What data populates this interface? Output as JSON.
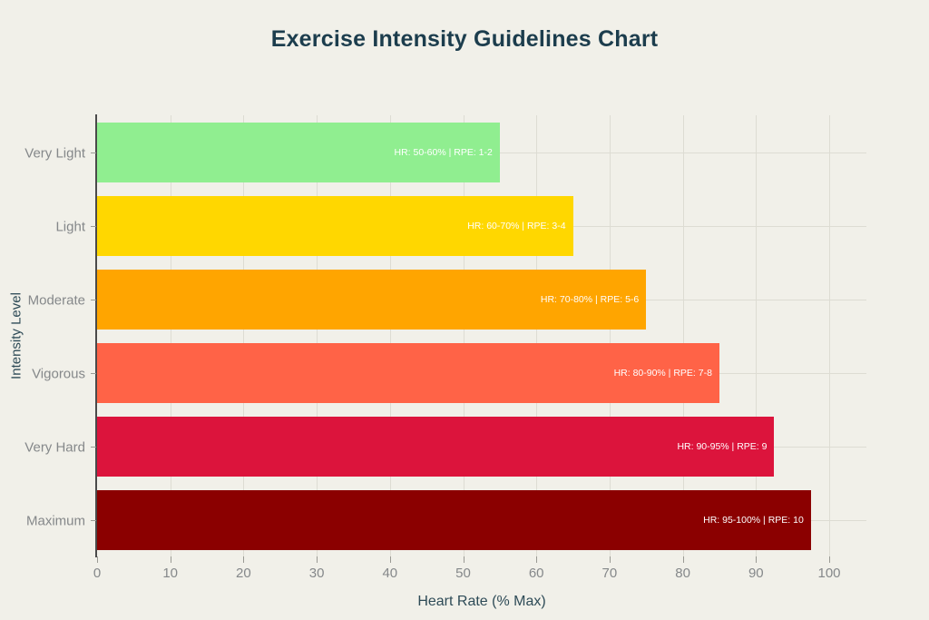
{
  "chart_data": {
    "type": "bar",
    "orientation": "horizontal",
    "title": "Exercise Intensity Guidelines Chart",
    "xlabel": "Heart Rate (% Max)",
    "ylabel": "Intensity Level",
    "categories": [
      "Very Light",
      "Light",
      "Moderate",
      "Vigorous",
      "Very Hard",
      "Maximum"
    ],
    "values": [
      55,
      65,
      75,
      85,
      92.5,
      97.5
    ],
    "bar_labels": [
      "HR: 50-60% | RPE: 1-2",
      "HR: 60-70% | RPE: 3-4",
      "HR: 70-80% | RPE: 5-6",
      "HR: 80-90% | RPE: 7-8",
      "HR: 90-95% | RPE: 9",
      "HR: 95-100% | RPE: 10"
    ],
    "bar_colors": [
      "#90EE90",
      "#FFD700",
      "#FFA500",
      "#FF6347",
      "#DC143C",
      "#8B0000"
    ],
    "x_ticks": [
      0,
      10,
      20,
      30,
      40,
      50,
      60,
      70,
      80,
      90,
      100
    ],
    "xlim": [
      0,
      105
    ],
    "grid": true,
    "legend": "none",
    "colors": {
      "background": "#F1F0E9",
      "title": "#1C3D4D",
      "axis_title": "#2E4B57",
      "tick_label": "#85888A",
      "tick_mark": "#9A9A94",
      "gridline": "#DDDCD3",
      "axis_line": "#4A4A4A",
      "bar_label_text": "#FFFFFF"
    }
  }
}
